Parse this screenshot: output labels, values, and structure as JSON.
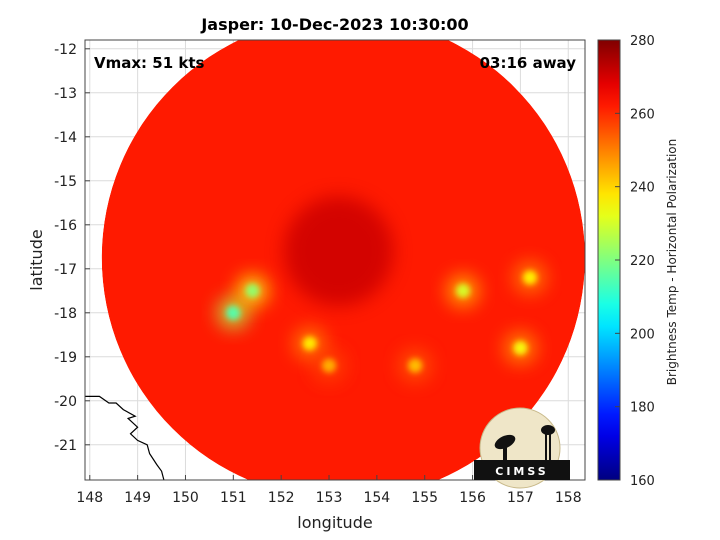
{
  "chart_data": {
    "type": "heatmap",
    "title": "Jasper: 10-Dec-2023 10:30:00",
    "xlabel": "longitude",
    "ylabel": "latitude",
    "xlim": [
      147.9,
      158.35
    ],
    "ylim": [
      -21.8,
      -11.8
    ],
    "xticks": [
      148,
      149,
      150,
      151,
      152,
      153,
      154,
      155,
      156,
      157,
      158
    ],
    "yticks": [
      -12,
      -13,
      -14,
      -15,
      -16,
      -17,
      -18,
      -19,
      -20,
      -21
    ],
    "grid": true,
    "swath": {
      "center": [
        153.3,
        -16.75
      ],
      "radius_deg": 5.05
    },
    "storm_center": [
      153.2,
      -16.6
    ],
    "features": [
      {
        "lon": 151.0,
        "lat": -18.0,
        "value": 214
      },
      {
        "lon": 151.4,
        "lat": -17.5,
        "value": 222
      },
      {
        "lon": 152.6,
        "lat": -18.7,
        "value": 236
      },
      {
        "lon": 155.8,
        "lat": -17.5,
        "value": 230
      },
      {
        "lon": 157.2,
        "lat": -17.2,
        "value": 236
      },
      {
        "lon": 157.0,
        "lat": -18.8,
        "value": 234
      },
      {
        "lon": 154.8,
        "lat": -19.2,
        "value": 242
      },
      {
        "lon": 153.0,
        "lat": -19.2,
        "value": 244
      }
    ],
    "background_value": 262,
    "colorbar": {
      "label": "Brightness Temp - Horizontal Polarization",
      "range": [
        160,
        280
      ],
      "ticks": [
        160,
        180,
        200,
        220,
        240,
        260,
        280
      ],
      "colormap": "jet"
    },
    "annotations": {
      "vmax": "Vmax: 51 kts",
      "away": "03:16 away"
    },
    "coastline": [
      [
        147.9,
        -19.9
      ],
      [
        148.2,
        -19.9
      ],
      [
        148.4,
        -20.05
      ],
      [
        148.55,
        -20.05
      ],
      [
        148.7,
        -20.2
      ],
      [
        148.95,
        -20.35
      ],
      [
        148.8,
        -20.4
      ],
      [
        149.0,
        -20.6
      ],
      [
        148.85,
        -20.75
      ],
      [
        149.0,
        -20.9
      ],
      [
        149.2,
        -21.0
      ],
      [
        149.25,
        -21.2
      ],
      [
        149.4,
        -21.45
      ],
      [
        149.5,
        -21.6
      ],
      [
        149.55,
        -21.8
      ]
    ]
  },
  "logo": {
    "text": "CIMSS"
  }
}
